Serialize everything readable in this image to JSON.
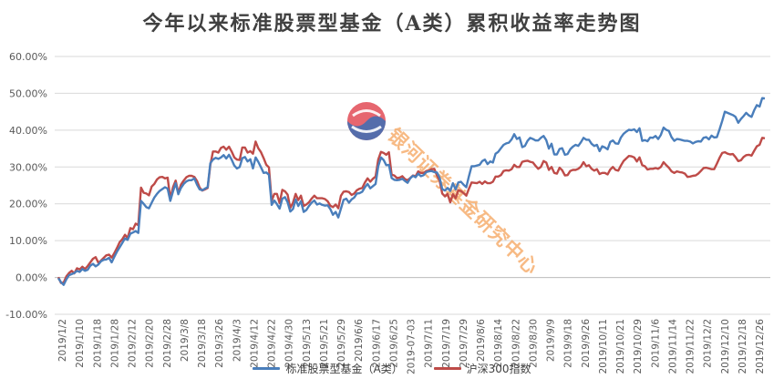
{
  "colors": {
    "fund": "#4a7ebb",
    "index": "#be4b48",
    "grid": "#d9d9d9",
    "axis": "#bfbfbf",
    "text": "#595959"
  },
  "watermark": {
    "text": "银河证券基金研究中心",
    "logo": "yinhe-logo"
  },
  "chart_data": {
    "type": "line",
    "title": "今年以来标准股票型基金（A类）累积收益率走势图",
    "xlabel": "",
    "ylabel": "",
    "ylim": [
      -10,
      60
    ],
    "yticks": [
      -10,
      0,
      10,
      20,
      30,
      40,
      50,
      60
    ],
    "ytick_labels": [
      "-10.00%",
      "0.00%",
      "10.00%",
      "20.00%",
      "30.00%",
      "40.00%",
      "50.00%",
      "60.00%"
    ],
    "grid": true,
    "legend_position": "bottom",
    "x_tick_labels": [
      "2019/1/2",
      "2019/1/10",
      "2019/1/18",
      "2019/1/28",
      "2019/2/12",
      "2019/2/20",
      "2019/2/28",
      "2019/3/8",
      "2019/3/18",
      "2019/3/26",
      "2019/4/3",
      "2019/4/12",
      "2019/4/22",
      "2019/4/30",
      "2019/5/13",
      "2019/5/21",
      "2019/5/29",
      "2019/6/6",
      "2019/6/17",
      "2019/6/25",
      "2019-07-03",
      "2019/7/11",
      "2019/7/19",
      "2019/7/29",
      "2019/8/6",
      "2019/8/14",
      "2019/8/22",
      "2019/8/30",
      "2019/9/9",
      "2019/9/18",
      "2019/9/26",
      "2019/10/11",
      "2019/10/21",
      "2019/10/29",
      "2019/11/6",
      "2019/11/14",
      "2019/11/22",
      "2019/12/2",
      "2019/12/10",
      "2019/12/18",
      "2019/12/26"
    ],
    "series": [
      {
        "name": "标准股票型基金（A类）",
        "values": [
          -0.2,
          -1.3,
          -2.0,
          -0.5,
          0.6,
          0.9,
          1.2,
          1.8,
          1.5,
          2.3,
          1.8,
          2.1,
          3.2,
          3.7,
          3.0,
          3.5,
          4.4,
          4.8,
          4.9,
          5.3,
          4.1,
          5.6,
          7.0,
          8.2,
          9.4,
          10.6,
          10.2,
          11.9,
          12.2,
          12.6,
          12.1,
          20.8,
          20.0,
          19.1,
          18.8,
          20.3,
          21.7,
          22.7,
          23.5,
          24.0,
          24.5,
          24.1,
          20.8,
          23.4,
          25.6,
          22.6,
          24.3,
          25.4,
          26.1,
          26.4,
          26.4,
          26.9,
          25.2,
          23.9,
          23.7,
          24.1,
          24.5,
          31.0,
          32.0,
          32.5,
          32.2,
          32.6,
          33.2,
          32.3,
          33.3,
          32.0,
          30.4,
          29.6,
          30.0,
          32.4,
          32.7,
          31.5,
          32.1,
          29.6,
          32.6,
          31.4,
          29.9,
          28.4,
          28.5,
          27.9,
          19.7,
          20.9,
          19.9,
          18.7,
          21.4,
          21.8,
          20.4,
          17.9,
          18.6,
          21.2,
          19.4,
          20.7,
          17.8,
          18.3,
          19.4,
          20.3,
          20.9,
          19.8,
          20.1,
          19.7,
          19.5,
          19.6,
          18.6,
          17.0,
          17.8,
          16.3,
          18.7,
          21.1,
          21.4,
          20.3,
          21.2,
          21.7,
          22.8,
          22.9,
          23.3,
          24.5,
          25.4,
          24.2,
          24.8,
          25.4,
          30.2,
          32.6,
          31.9,
          30.5,
          30.6,
          27.0,
          26.5,
          26.4,
          26.5,
          26.8,
          26.2,
          25.7,
          26.9,
          27.6,
          27.2,
          28.2,
          27.5,
          27.8,
          28.6,
          28.8,
          28.9,
          28.6,
          28.5,
          27.1,
          24.0,
          23.6,
          24.3,
          23.5,
          25.6,
          23.9,
          25.8,
          26.0,
          25.2,
          24.5,
          27.5,
          30.2,
          30.2,
          30.4,
          30.6,
          31.6,
          32.0,
          30.8,
          31.5,
          31.2,
          33.6,
          34.1,
          35.1,
          36.0,
          36.4,
          36.6,
          37.5,
          38.9,
          37.6,
          38.0,
          35.4,
          35.7,
          37.1,
          37.9,
          37.6,
          37.2,
          37.2,
          37.9,
          38.4,
          37.3,
          35.0,
          36.3,
          33.4,
          33.4,
          34.9,
          35.1,
          33.3,
          33.5,
          34.8,
          35.5,
          36.0,
          35.7,
          36.7,
          37.9,
          37.4,
          37.4,
          36.3,
          35.7,
          36.0,
          34.3,
          35.6,
          35.3,
          34.8,
          36.8,
          37.2,
          36.4,
          36.3,
          38.0,
          39.0,
          39.6,
          40.1,
          40.0,
          40.2,
          39.5,
          40.5,
          37.1,
          37.3,
          37.0,
          38.0,
          37.9,
          38.4,
          37.6,
          38.7,
          40.7,
          40.1,
          39.8,
          38.1,
          37.1,
          37.6,
          37.5,
          37.3,
          37.1,
          37.1,
          36.9,
          36.4,
          36.8,
          37.0,
          36.9,
          37.9,
          38.1,
          37.5,
          38.5,
          38.0,
          38.1,
          40.2,
          42.5,
          45.0,
          44.7,
          44.4,
          44.1,
          43.6,
          42.0,
          43.0,
          43.8,
          44.7,
          44.0,
          43.6,
          45.4,
          46.8,
          46.4,
          48.7,
          48.6
        ]
      },
      {
        "name": "沪深300指数",
        "values": [
          0.1,
          -1.5,
          -1.4,
          0.3,
          1.2,
          1.8,
          1.1,
          2.5,
          2.2,
          2.9,
          2.3,
          3.1,
          4.1,
          5.1,
          5.5,
          4.0,
          4.6,
          5.3,
          6.0,
          6.2,
          5.4,
          6.6,
          8.0,
          9.6,
          10.4,
          11.6,
          10.7,
          13.4,
          13.1,
          14.6,
          14.2,
          24.4,
          23.0,
          22.8,
          22.3,
          24.7,
          25.4,
          26.6,
          27.2,
          27.3,
          26.9,
          27.1,
          21.4,
          24.5,
          26.3,
          22.9,
          25.2,
          26.3,
          27.2,
          27.6,
          27.6,
          27.3,
          26.2,
          24.4,
          23.6,
          23.9,
          24.3,
          30.5,
          34.2,
          34.2,
          33.9,
          35.2,
          35.5,
          34.7,
          35.5,
          34.2,
          32.6,
          32.0,
          31.9,
          35.3,
          35.3,
          33.9,
          34.3,
          33.6,
          36.9,
          35.1,
          34.0,
          32.4,
          30.6,
          29.9,
          20.8,
          22.7,
          22.7,
          20.2,
          23.8,
          23.4,
          22.5,
          18.9,
          20.3,
          22.7,
          21.0,
          22.2,
          19.4,
          19.8,
          20.4,
          21.4,
          22.2,
          21.5,
          21.5,
          21.5,
          21.3,
          20.7,
          19.5,
          19.1,
          19.8,
          18.8,
          22.2,
          23.3,
          23.4,
          23.2,
          22.4,
          22.8,
          23.7,
          24.1,
          24.3,
          25.8,
          26.9,
          26.0,
          26.8,
          27.4,
          32.0,
          34.1,
          33.8,
          33.3,
          34.0,
          27.9,
          27.7,
          27.0,
          27.1,
          27.5,
          26.7,
          26.4,
          27.0,
          27.7,
          27.5,
          28.8,
          28.4,
          28.4,
          28.9,
          29.0,
          29.4,
          29.5,
          27.7,
          26.3,
          22.8,
          22.0,
          22.7,
          20.4,
          22.6,
          21.5,
          23.7,
          23.5,
          22.9,
          22.2,
          24.1,
          25.8,
          25.7,
          25.6,
          26.0,
          25.4,
          26.1,
          25.6,
          25.6,
          26.0,
          27.4,
          27.4,
          27.8,
          28.9,
          29.1,
          29.0,
          29.4,
          30.6,
          30.0,
          30.0,
          31.4,
          31.6,
          31.7,
          31.4,
          31.2,
          30.3,
          29.5,
          30.0,
          31.6,
          31.2,
          29.2,
          30.0,
          28.4,
          28.2,
          29.8,
          29.1,
          27.7,
          27.8,
          28.9,
          29.2,
          29.2,
          29.5,
          30.1,
          31.3,
          30.2,
          30.5,
          29.5,
          29.0,
          29.4,
          28.1,
          28.4,
          28.4,
          28.0,
          29.3,
          30.0,
          29.2,
          29.0,
          30.4,
          31.6,
          32.3,
          33.0,
          32.9,
          32.6,
          31.5,
          32.6,
          30.5,
          30.2,
          29.3,
          29.5,
          29.5,
          29.7,
          29.5,
          30.0,
          31.3,
          30.5,
          29.8,
          28.8,
          28.4,
          28.8,
          28.6,
          28.5,
          28.2,
          27.3,
          27.4,
          27.6,
          27.7,
          28.2,
          28.9,
          29.7,
          29.8,
          29.6,
          29.4,
          29.4,
          30.9,
          32.5,
          33.8,
          34.0,
          33.6,
          33.4,
          33.5,
          32.7,
          31.6,
          31.8,
          32.7,
          33.2,
          33.3,
          33.1,
          34.4,
          35.6,
          36.0,
          37.9,
          37.8
        ]
      }
    ]
  }
}
